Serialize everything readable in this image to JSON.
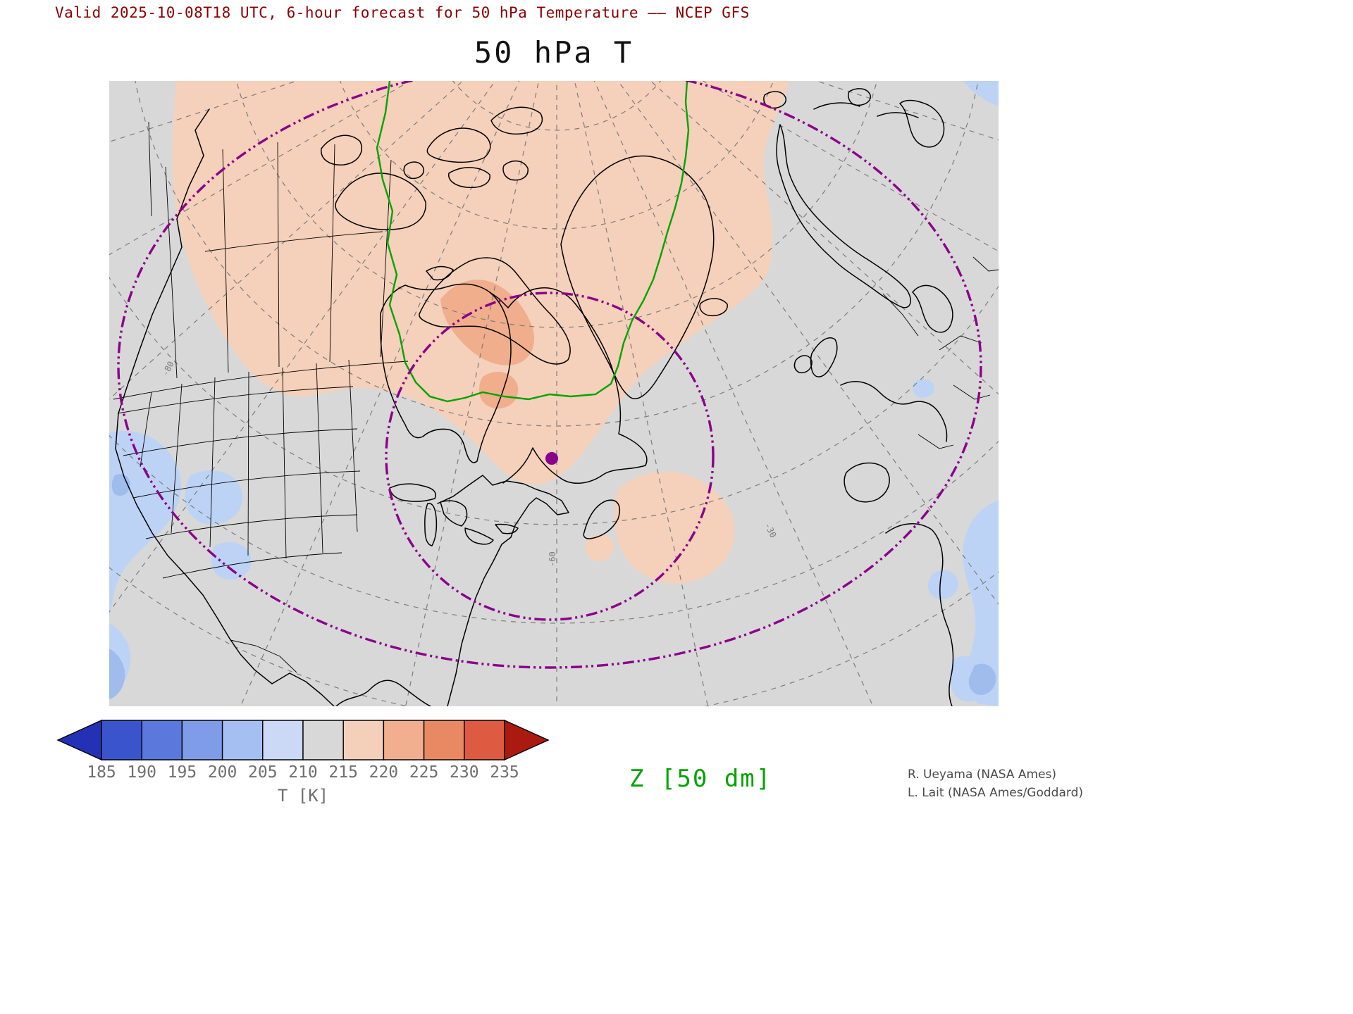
{
  "header": {
    "valid_line": "Valid 2025-10-08T18 UTC, 6-hour forecast for 50 hPa Temperature –– NCEP GFS",
    "title": "50 hPa T",
    "color": "#8b0000"
  },
  "map": {
    "background": "#d8d8d8",
    "palette": {
      "warm_light": "#f5d0ba",
      "warm_mid": "#f0ae8c",
      "blue_light": "#bdd3f5",
      "blue_mid": "#9fbced"
    },
    "coast_color": "#000000",
    "graticule_color": "#7d7d7d",
    "z_contour_color": "#00a400",
    "vortex_color": "#8b008b",
    "graticule_labels": [
      "-80",
      "-60",
      "-30"
    ]
  },
  "colorbar": {
    "tick_labels": [
      "185",
      "190",
      "195",
      "200",
      "205",
      "210",
      "215",
      "220",
      "225",
      "230",
      "235"
    ],
    "axis_label": "T [K]",
    "tick_color": "#6f6f6f",
    "segment_colors": [
      "#2431b4",
      "#3a55cc",
      "#5b79dd",
      "#7f9ce9",
      "#a6bff2",
      "#cbd9f7",
      "#d8d8d8",
      "#f4cfba",
      "#f1af90",
      "#e98963",
      "#dd5b40",
      "#aa1a10"
    ]
  },
  "overlay": {
    "z_label": "Z [50 dm]",
    "z_color": "#00a400"
  },
  "credits": {
    "line1": "R. Ueyama (NASA Ames)",
    "line2": "L. Lait (NASA Ames/Goddard)"
  },
  "chart_data": {
    "type": "heatmap",
    "title": "50 hPa T",
    "subtitle": "Valid 2025-10-08T18 UTC, 6-hour forecast for 50 hPa Temperature –– NCEP GFS",
    "model": "NCEP GFS",
    "valid_time": "2025-10-08T18 UTC",
    "forecast_hours": 6,
    "level_hPa": 50,
    "variable": "Temperature",
    "units": "K",
    "colorbar_label": "T [K]",
    "colorbar_ticks": [
      185,
      190,
      195,
      200,
      205,
      210,
      215,
      220,
      225,
      230,
      235
    ],
    "colorbar_out_of_range": "arrow ends below 185 and above 235",
    "shading_summary": "warm anomaly (215-225 K) over Canadian Arctic, Greenland and Labrador; near 210-215 K (neutral gray) elsewhere; cooler 200-210 K over US Pacific coast and eastern Atlantic/Europe edge",
    "overlays": [
      {
        "name": "geopotential-height-contour",
        "label": "Z [50 dm]",
        "color": "#00a400",
        "style": "solid green contour"
      },
      {
        "name": "vortex-edge-rings",
        "color": "#8b008b",
        "style": "dash-dot purple rings"
      },
      {
        "name": "vortex-center-marker",
        "color": "#8b008b",
        "style": "filled purple dot over Labrador"
      }
    ],
    "graticule_labels": [
      "-80",
      "-60",
      "-30"
    ],
    "projection_hint": "polar stereographic view of North America, Greenland and North Atlantic",
    "legend_position": "bottom-left"
  }
}
